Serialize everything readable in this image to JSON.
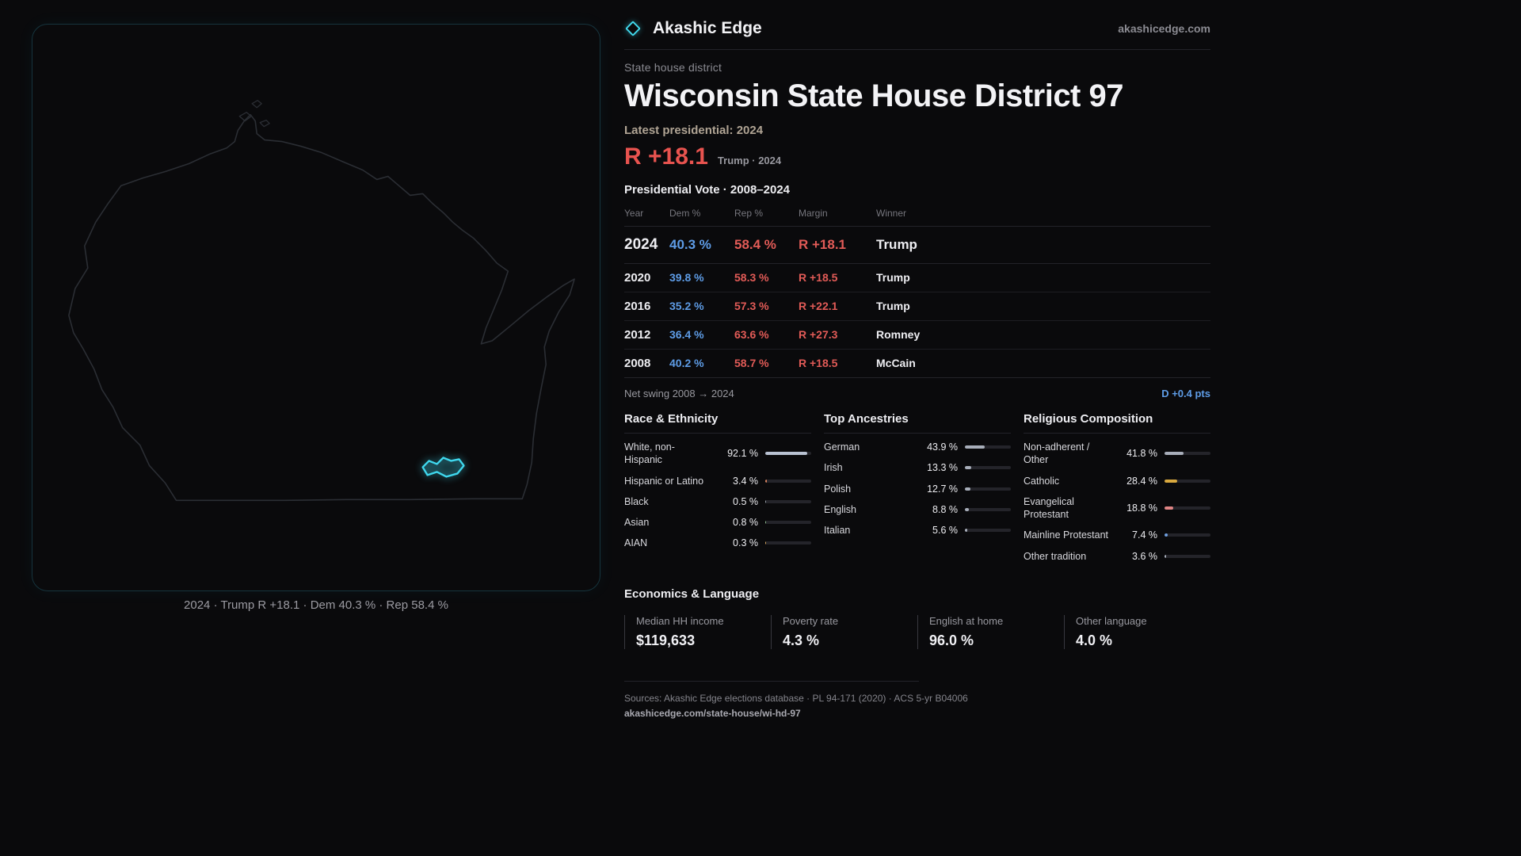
{
  "colors": {
    "accent_cyan": "#3fd8ee",
    "dem_blue": "#5e9ce6",
    "rep_red": "#e25b57",
    "gold": "#d9a93f",
    "background": "#0a0a0c"
  },
  "map": {
    "caption": "2024 · Trump R +18.1 · Dem 40.3 % · Rep 58.4 %"
  },
  "header": {
    "brand": "Akashic Edge",
    "site": "akashicedge.com"
  },
  "district": {
    "kicker": "State house district",
    "title": "Wisconsin State House District 97",
    "latest_label": "Latest presidential: 2024",
    "margin_big": "R +18.1",
    "margin_note": "Trump · 2024"
  },
  "vote_table": {
    "title": "Presidential Vote · 2008–2024",
    "columns": [
      "Year",
      "Dem %",
      "Rep %",
      "Margin",
      "Winner"
    ],
    "rows": [
      {
        "year": "2024",
        "dem": "40.3 %",
        "rep": "58.4 %",
        "margin": "R +18.1",
        "winner": "Trump"
      },
      {
        "year": "2020",
        "dem": "39.8 %",
        "rep": "58.3 %",
        "margin": "R +18.5",
        "winner": "Trump"
      },
      {
        "year": "2016",
        "dem": "35.2 %",
        "rep": "57.3 %",
        "margin": "R +22.1",
        "winner": "Trump"
      },
      {
        "year": "2012",
        "dem": "36.4 %",
        "rep": "63.6 %",
        "margin": "R +27.3",
        "winner": "Romney"
      },
      {
        "year": "2008",
        "dem": "40.2 %",
        "rep": "58.7 %",
        "margin": "R +18.5",
        "winner": "McCain"
      }
    ],
    "net_swing_label": "Net swing 2008 → 2024",
    "net_swing_value": "D +0.4 pts"
  },
  "demographics": [
    {
      "title": "Race & Ethnicity",
      "rows": [
        {
          "label": "White, non-\nHispanic",
          "value": "92.1 %",
          "pct": 92.1,
          "color": "#b9c2d2"
        },
        {
          "label": "Hispanic or Latino",
          "value": "3.4 %",
          "pct": 3.4,
          "color": "#d9825f"
        },
        {
          "label": "Black",
          "value": "0.5 %",
          "pct": 0.5,
          "color": "#9aa0aa"
        },
        {
          "label": "Asian",
          "value": "0.8 %",
          "pct": 0.8,
          "color": "#8fbb8f"
        },
        {
          "label": "AIAN",
          "value": "0.3 %",
          "pct": 0.3,
          "color": "#d9a85f"
        }
      ]
    },
    {
      "title": "Top Ancestries",
      "rows": [
        {
          "label": "German",
          "value": "43.9 %",
          "pct": 43.9,
          "color": "#a8aeba"
        },
        {
          "label": "Irish",
          "value": "13.3 %",
          "pct": 13.3,
          "color": "#a8aeba"
        },
        {
          "label": "Polish",
          "value": "12.7 %",
          "pct": 12.7,
          "color": "#a8aeba"
        },
        {
          "label": "English",
          "value": "8.8 %",
          "pct": 8.8,
          "color": "#a8aeba"
        },
        {
          "label": "Italian",
          "value": "5.6 %",
          "pct": 5.6,
          "color": "#a8aeba"
        }
      ]
    },
    {
      "title": "Religious Composition",
      "rows": [
        {
          "label": "Non-adherent /\nOther",
          "value": "41.8 %",
          "pct": 41.8,
          "color": "#a8aeba"
        },
        {
          "label": "Catholic",
          "value": "28.4 %",
          "pct": 28.4,
          "color": "#d9a93f"
        },
        {
          "label": "Evangelical\nProtestant",
          "value": "18.8 %",
          "pct": 18.8,
          "color": "#e08585"
        },
        {
          "label": "Mainline Protestant",
          "value": "7.4 %",
          "pct": 7.4,
          "color": "#6f9fe0"
        },
        {
          "label": "Other tradition",
          "value": "3.6 %",
          "pct": 3.6,
          "color": "#a8aeba"
        }
      ]
    }
  ],
  "economics": {
    "title": "Economics & Language",
    "stats": [
      {
        "label": "Median HH income",
        "value": "$119,633"
      },
      {
        "label": "Poverty rate",
        "value": "4.3 %"
      },
      {
        "label": "English at home",
        "value": "96.0 %"
      },
      {
        "label": "Other language",
        "value": "4.0 %"
      }
    ]
  },
  "footer": {
    "sources": "Sources: Akashic Edge elections database · PL 94-171 (2020) · ACS 5-yr B04006",
    "permalink": "akashicedge.com/state-house/wi-hd-97"
  }
}
